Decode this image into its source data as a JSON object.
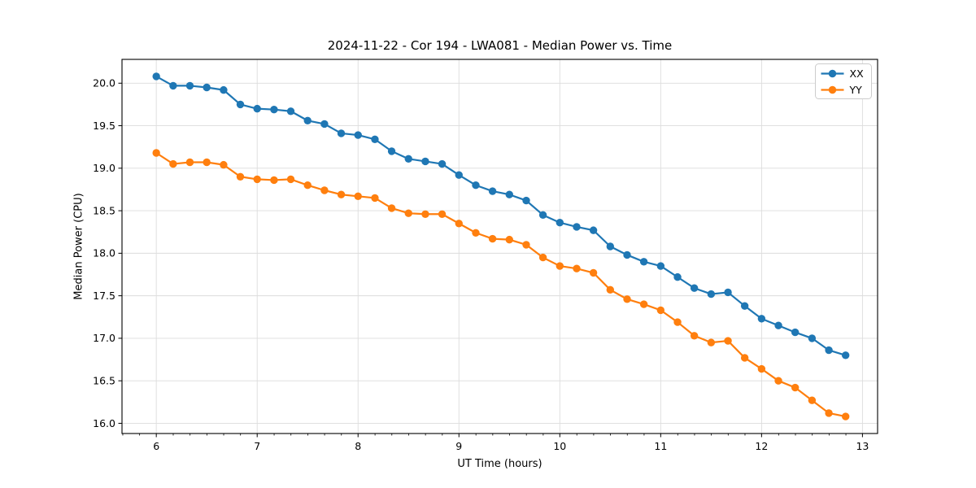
{
  "chart_data": {
    "type": "line",
    "title": "2024-11-22 - Cor 194 - LWA081 - Median Power vs. Time",
    "xlabel": "UT Time (hours)",
    "ylabel": "Median Power (CPU)",
    "xlim": [
      5.66,
      13.15
    ],
    "ylim": [
      15.88,
      20.28
    ],
    "x_major_ticks": [
      6,
      7,
      8,
      9,
      10,
      11,
      12,
      13
    ],
    "x_minor_tick_step": 0.1667,
    "y_major_ticks": [
      16.0,
      16.5,
      17.0,
      17.5,
      18.0,
      18.5,
      19.0,
      19.5,
      20.0
    ],
    "grid": true,
    "grid_color": "#dcdcdc",
    "spine_color": "#000000",
    "legend_position": "upper right",
    "legend_entries": [
      "XX",
      "YY"
    ],
    "x": [
      6.0,
      6.167,
      6.333,
      6.5,
      6.667,
      6.833,
      7.0,
      7.167,
      7.333,
      7.5,
      7.667,
      7.833,
      8.0,
      8.167,
      8.333,
      8.5,
      8.667,
      8.833,
      9.0,
      9.167,
      9.333,
      9.5,
      9.667,
      9.833,
      10.0,
      10.167,
      10.333,
      10.5,
      10.667,
      10.833,
      11.0,
      11.167,
      11.333,
      11.5,
      11.667,
      11.833,
      12.0,
      12.167,
      12.333,
      12.5,
      12.667,
      12.833
    ],
    "series": [
      {
        "name": "XX",
        "color": "#1f77b4",
        "marker": "circle",
        "values": [
          20.08,
          19.97,
          19.97,
          19.95,
          19.92,
          19.75,
          19.7,
          19.69,
          19.67,
          19.56,
          19.52,
          19.41,
          19.39,
          19.34,
          19.2,
          19.11,
          19.08,
          19.05,
          18.92,
          18.8,
          18.73,
          18.69,
          18.62,
          18.45,
          18.36,
          18.31,
          18.27,
          18.08,
          17.98,
          17.9,
          17.85,
          17.72,
          17.59,
          17.52,
          17.54,
          17.38,
          17.23,
          17.15,
          17.07,
          17.0,
          16.86,
          16.8
        ]
      },
      {
        "name": "YY",
        "color": "#ff7f0e",
        "marker": "circle",
        "values": [
          19.18,
          19.05,
          19.07,
          19.07,
          19.04,
          18.9,
          18.87,
          18.86,
          18.87,
          18.8,
          18.74,
          18.69,
          18.67,
          18.65,
          18.53,
          18.47,
          18.46,
          18.46,
          18.35,
          18.24,
          18.17,
          18.16,
          18.1,
          17.95,
          17.85,
          17.82,
          17.77,
          17.57,
          17.46,
          17.4,
          17.33,
          17.19,
          17.03,
          16.95,
          16.97,
          16.77,
          16.64,
          16.5,
          16.42,
          16.27,
          16.12,
          16.08
        ]
      }
    ]
  }
}
